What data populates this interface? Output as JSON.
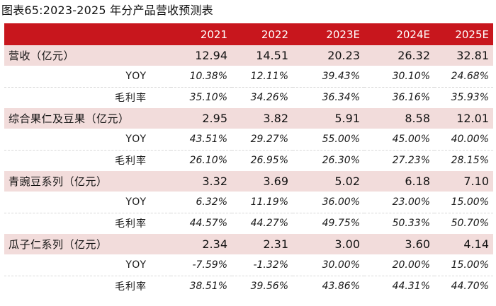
{
  "title": "图表65:2023-2025 年分产品营收预测表",
  "table": {
    "headers": [
      "",
      "2021",
      "2022",
      "2023E",
      "2024E",
      "2025E"
    ],
    "segments": [
      {
        "label": "营收（亿元）",
        "values": [
          "12.94",
          "14.51",
          "20.23",
          "26.32",
          "32.81"
        ],
        "rows": [
          {
            "label": "YOY",
            "values": [
              "10.38%",
              "12.11%",
              "39.43%",
              "30.10%",
              "24.68%"
            ]
          },
          {
            "label": "毛利率",
            "values": [
              "35.10%",
              "34.26%",
              "36.34%",
              "36.16%",
              "35.93%"
            ]
          }
        ]
      },
      {
        "label": "综合果仁及豆果（亿元）",
        "values": [
          "2.95",
          "3.82",
          "5.91",
          "8.58",
          "12.01"
        ],
        "rows": [
          {
            "label": "YOY",
            "values": [
              "43.51%",
              "29.27%",
              "55.00%",
              "45.00%",
              "40.00%"
            ]
          },
          {
            "label": "毛利率",
            "values": [
              "26.10%",
              "26.95%",
              "26.30%",
              "27.23%",
              "28.15%"
            ]
          }
        ]
      },
      {
        "label": "青豌豆系列（亿元）",
        "values": [
          "3.32",
          "3.69",
          "5.02",
          "6.18",
          "7.10"
        ],
        "rows": [
          {
            "label": "YOY",
            "values": [
              "6.32%",
              "11.19%",
              "36.00%",
              "23.00%",
              "15.00%"
            ]
          },
          {
            "label": "毛利率",
            "values": [
              "44.57%",
              "44.27%",
              "49.75%",
              "50.33%",
              "50.70%"
            ]
          }
        ]
      },
      {
        "label": "瓜子仁系列（亿元）",
        "values": [
          "2.34",
          "2.31",
          "3.00",
          "3.60",
          "4.14"
        ],
        "rows": [
          {
            "label": "YOY",
            "values": [
              "-7.59%",
              "-1.32%",
              "30.00%",
              "20.00%",
              "15.00%"
            ]
          },
          {
            "label": "毛利率",
            "values": [
              "38.51%",
              "39.56%",
              "43.86%",
              "44.31%",
              "44.70%"
            ]
          }
        ]
      }
    ]
  },
  "colors": {
    "header_bg": "#c8161d",
    "header_text": "#ffffff",
    "segment_bg": "#f2dcdb"
  }
}
